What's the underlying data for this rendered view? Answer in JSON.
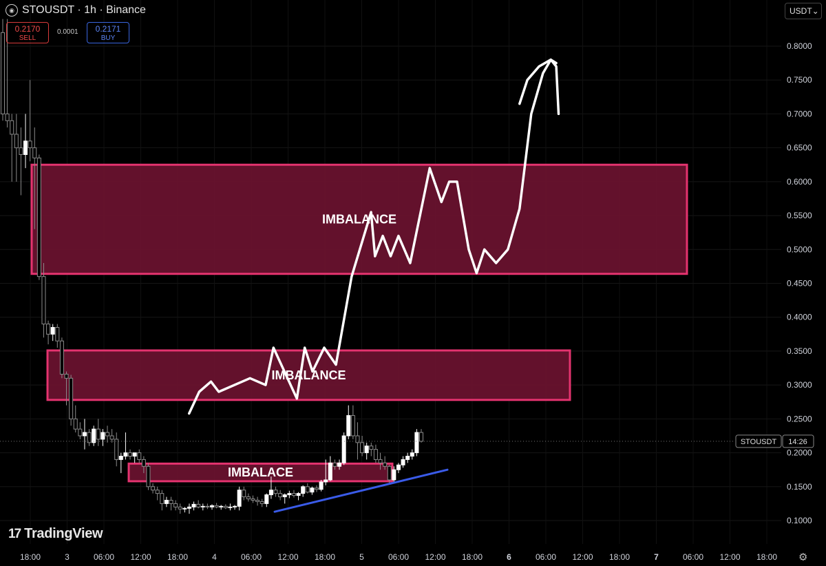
{
  "header": {
    "symbol_line": "STOUSDT · 1h · Binance",
    "logo_glyph": "◉"
  },
  "trade": {
    "sell_price": "0.2170",
    "sell_label": "SELL",
    "spread": "0.0001",
    "buy_price": "0.2171",
    "buy_label": "BUY"
  },
  "currency_selector": {
    "value": "USDT",
    "chevron": "⌄"
  },
  "watermark": {
    "mark": "17",
    "text": "TradingView"
  },
  "price_tag": {
    "symbol": "STOUSDT",
    "countdown": "14:26"
  },
  "icons": {
    "settings": "settings-gear-icon"
  },
  "colors": {
    "background": "#000000",
    "up": "#ffffff",
    "down": "#8c8c8c",
    "zone_fill": "#6b1230",
    "zone_border": "#e4336f",
    "trendline": "#3a5be8",
    "drawing": "#ffffff"
  },
  "chart_data": {
    "type": "candlestick",
    "y_axis": {
      "min": 0.1,
      "max": 0.8,
      "step": 0.05,
      "tick_labels": [
        "0.8000",
        "0.7500",
        "0.7000",
        "0.6500",
        "0.6000",
        "0.5500",
        "0.5000",
        "0.4500",
        "0.4000",
        "0.3500",
        "0.3000",
        "0.2500",
        "0.2000",
        "0.1500",
        "0.1000"
      ]
    },
    "x_axis": {
      "tick_labels": [
        "18:00",
        "3",
        "06:00",
        "12:00",
        "18:00",
        "4",
        "06:00",
        "12:00",
        "18:00",
        "5",
        "06:00",
        "12:00",
        "18:00",
        "6",
        "06:00",
        "12:00",
        "18:00",
        "7",
        "06:00",
        "12:00",
        "18:00"
      ],
      "bold_labels": [
        "6",
        "7"
      ]
    },
    "grid": true,
    "last_price": 0.217,
    "zones": [
      {
        "label": "IMBALANCE",
        "top": 0.625,
        "bottom": 0.464
      },
      {
        "label": "IMBALANCE",
        "top": 0.351,
        "bottom": 0.278
      },
      {
        "label": "IMBALACE",
        "top": 0.184,
        "bottom": 0.158
      }
    ],
    "trendline": {
      "from": 0.113,
      "to": 0.175
    },
    "candles": [
      [
        0.82,
        0.84,
        0.69,
        0.7
      ],
      [
        0.7,
        0.84,
        0.68,
        0.69
      ],
      [
        0.69,
        0.7,
        0.6,
        0.67
      ],
      [
        0.67,
        0.7,
        0.6,
        0.65
      ],
      [
        0.65,
        0.68,
        0.58,
        0.64
      ],
      [
        0.64,
        0.7,
        0.62,
        0.66
      ],
      [
        0.66,
        0.75,
        0.63,
        0.65
      ],
      [
        0.65,
        0.68,
        0.53,
        0.635
      ],
      [
        0.635,
        0.64,
        0.455,
        0.46
      ],
      [
        0.46,
        0.48,
        0.37,
        0.39
      ],
      [
        0.39,
        0.395,
        0.36,
        0.375
      ],
      [
        0.375,
        0.39,
        0.365,
        0.385
      ],
      [
        0.385,
        0.39,
        0.355,
        0.365
      ],
      [
        0.365,
        0.37,
        0.31,
        0.316
      ],
      [
        0.316,
        0.32,
        0.27,
        0.31
      ],
      [
        0.31,
        0.315,
        0.24,
        0.25
      ],
      [
        0.25,
        0.27,
        0.23,
        0.235
      ],
      [
        0.235,
        0.245,
        0.22,
        0.225
      ],
      [
        0.225,
        0.25,
        0.205,
        0.23
      ],
      [
        0.23,
        0.235,
        0.21,
        0.215
      ],
      [
        0.215,
        0.24,
        0.21,
        0.235
      ],
      [
        0.235,
        0.25,
        0.21,
        0.22
      ],
      [
        0.22,
        0.235,
        0.21,
        0.23
      ],
      [
        0.23,
        0.24,
        0.215,
        0.225
      ],
      [
        0.225,
        0.235,
        0.215,
        0.22
      ],
      [
        0.22,
        0.23,
        0.18,
        0.19
      ],
      [
        0.19,
        0.2,
        0.17,
        0.195
      ],
      [
        0.195,
        0.23,
        0.19,
        0.2
      ],
      [
        0.2,
        0.205,
        0.19,
        0.195
      ],
      [
        0.195,
        0.2,
        0.185,
        0.2
      ],
      [
        0.2,
        0.205,
        0.185,
        0.19
      ],
      [
        0.19,
        0.195,
        0.17,
        0.18
      ],
      [
        0.18,
        0.185,
        0.145,
        0.15
      ],
      [
        0.15,
        0.155,
        0.14,
        0.145
      ],
      [
        0.145,
        0.15,
        0.13,
        0.14
      ],
      [
        0.14,
        0.145,
        0.115,
        0.125
      ],
      [
        0.125,
        0.135,
        0.12,
        0.13
      ],
      [
        0.13,
        0.135,
        0.115,
        0.125
      ],
      [
        0.125,
        0.13,
        0.115,
        0.12
      ],
      [
        0.12,
        0.125,
        0.11,
        0.117
      ],
      [
        0.117,
        0.12,
        0.112,
        0.118
      ],
      [
        0.118,
        0.125,
        0.11,
        0.12
      ],
      [
        0.12,
        0.128,
        0.115,
        0.124
      ],
      [
        0.124,
        0.13,
        0.118,
        0.12
      ],
      [
        0.12,
        0.125,
        0.115,
        0.121
      ],
      [
        0.121,
        0.125,
        0.117,
        0.12
      ],
      [
        0.12,
        0.124,
        0.116,
        0.122
      ],
      [
        0.122,
        0.126,
        0.118,
        0.12
      ],
      [
        0.12,
        0.123,
        0.116,
        0.121
      ],
      [
        0.121,
        0.124,
        0.117,
        0.119
      ],
      [
        0.119,
        0.125,
        0.115,
        0.12
      ],
      [
        0.12,
        0.123,
        0.116,
        0.121
      ],
      [
        0.121,
        0.15,
        0.115,
        0.145
      ],
      [
        0.145,
        0.15,
        0.13,
        0.135
      ],
      [
        0.135,
        0.14,
        0.128,
        0.132
      ],
      [
        0.132,
        0.137,
        0.126,
        0.13
      ],
      [
        0.13,
        0.135,
        0.122,
        0.128
      ],
      [
        0.128,
        0.132,
        0.12,
        0.125
      ],
      [
        0.125,
        0.14,
        0.12,
        0.138
      ],
      [
        0.138,
        0.165,
        0.132,
        0.145
      ],
      [
        0.145,
        0.15,
        0.135,
        0.14
      ],
      [
        0.14,
        0.145,
        0.13,
        0.135
      ],
      [
        0.135,
        0.14,
        0.125,
        0.138
      ],
      [
        0.138,
        0.144,
        0.133,
        0.14
      ],
      [
        0.14,
        0.145,
        0.134,
        0.137
      ],
      [
        0.137,
        0.142,
        0.13,
        0.14
      ],
      [
        0.14,
        0.152,
        0.135,
        0.15
      ],
      [
        0.15,
        0.155,
        0.14,
        0.142
      ],
      [
        0.142,
        0.15,
        0.138,
        0.148
      ],
      [
        0.148,
        0.152,
        0.142,
        0.146
      ],
      [
        0.146,
        0.16,
        0.143,
        0.157
      ],
      [
        0.157,
        0.19,
        0.152,
        0.16
      ],
      [
        0.16,
        0.195,
        0.158,
        0.185
      ],
      [
        0.185,
        0.19,
        0.175,
        0.18
      ],
      [
        0.18,
        0.19,
        0.175,
        0.185
      ],
      [
        0.185,
        0.23,
        0.182,
        0.225
      ],
      [
        0.225,
        0.27,
        0.22,
        0.255
      ],
      [
        0.255,
        0.27,
        0.22,
        0.225
      ],
      [
        0.225,
        0.245,
        0.19,
        0.215
      ],
      [
        0.215,
        0.225,
        0.195,
        0.2
      ],
      [
        0.2,
        0.215,
        0.19,
        0.21
      ],
      [
        0.21,
        0.215,
        0.195,
        0.205
      ],
      [
        0.205,
        0.212,
        0.185,
        0.19
      ],
      [
        0.19,
        0.2,
        0.175,
        0.185
      ],
      [
        0.185,
        0.195,
        0.175,
        0.18
      ],
      [
        0.18,
        0.182,
        0.155,
        0.16
      ],
      [
        0.16,
        0.18,
        0.155,
        0.175
      ],
      [
        0.175,
        0.185,
        0.17,
        0.182
      ],
      [
        0.182,
        0.195,
        0.178,
        0.19
      ],
      [
        0.19,
        0.2,
        0.185,
        0.195
      ],
      [
        0.195,
        0.205,
        0.19,
        0.2
      ],
      [
        0.2,
        0.235,
        0.195,
        0.23
      ],
      [
        0.23,
        0.235,
        0.215,
        0.217
      ]
    ],
    "projection_path": [
      [
        0.242,
        0.258
      ],
      [
        0.255,
        0.29
      ],
      [
        0.27,
        0.305
      ],
      [
        0.28,
        0.29
      ],
      [
        0.32,
        0.31
      ],
      [
        0.34,
        0.3
      ],
      [
        0.35,
        0.355
      ],
      [
        0.38,
        0.28
      ],
      [
        0.39,
        0.355
      ],
      [
        0.4,
        0.32
      ],
      [
        0.415,
        0.355
      ],
      [
        0.43,
        0.33
      ],
      [
        0.45,
        0.46
      ],
      [
        0.475,
        0.555
      ],
      [
        0.48,
        0.49
      ],
      [
        0.49,
        0.52
      ],
      [
        0.5,
        0.49
      ],
      [
        0.51,
        0.52
      ],
      [
        0.525,
        0.48
      ],
      [
        0.55,
        0.62
      ],
      [
        0.565,
        0.57
      ],
      [
        0.575,
        0.6
      ],
      [
        0.585,
        0.6
      ],
      [
        0.6,
        0.5
      ],
      [
        0.61,
        0.465
      ],
      [
        0.62,
        0.5
      ],
      [
        0.635,
        0.48
      ],
      [
        0.65,
        0.5
      ],
      [
        0.665,
        0.56
      ],
      [
        0.68,
        0.7
      ],
      [
        0.695,
        0.76
      ],
      [
        0.705,
        0.78
      ],
      [
        0.712,
        0.77
      ],
      [
        0.715,
        0.7
      ]
    ],
    "projection_tail": [
      [
        0.665,
        0.715
      ],
      [
        0.675,
        0.75
      ],
      [
        0.69,
        0.77
      ],
      [
        0.705,
        0.78
      ],
      [
        0.712,
        0.775
      ]
    ]
  }
}
